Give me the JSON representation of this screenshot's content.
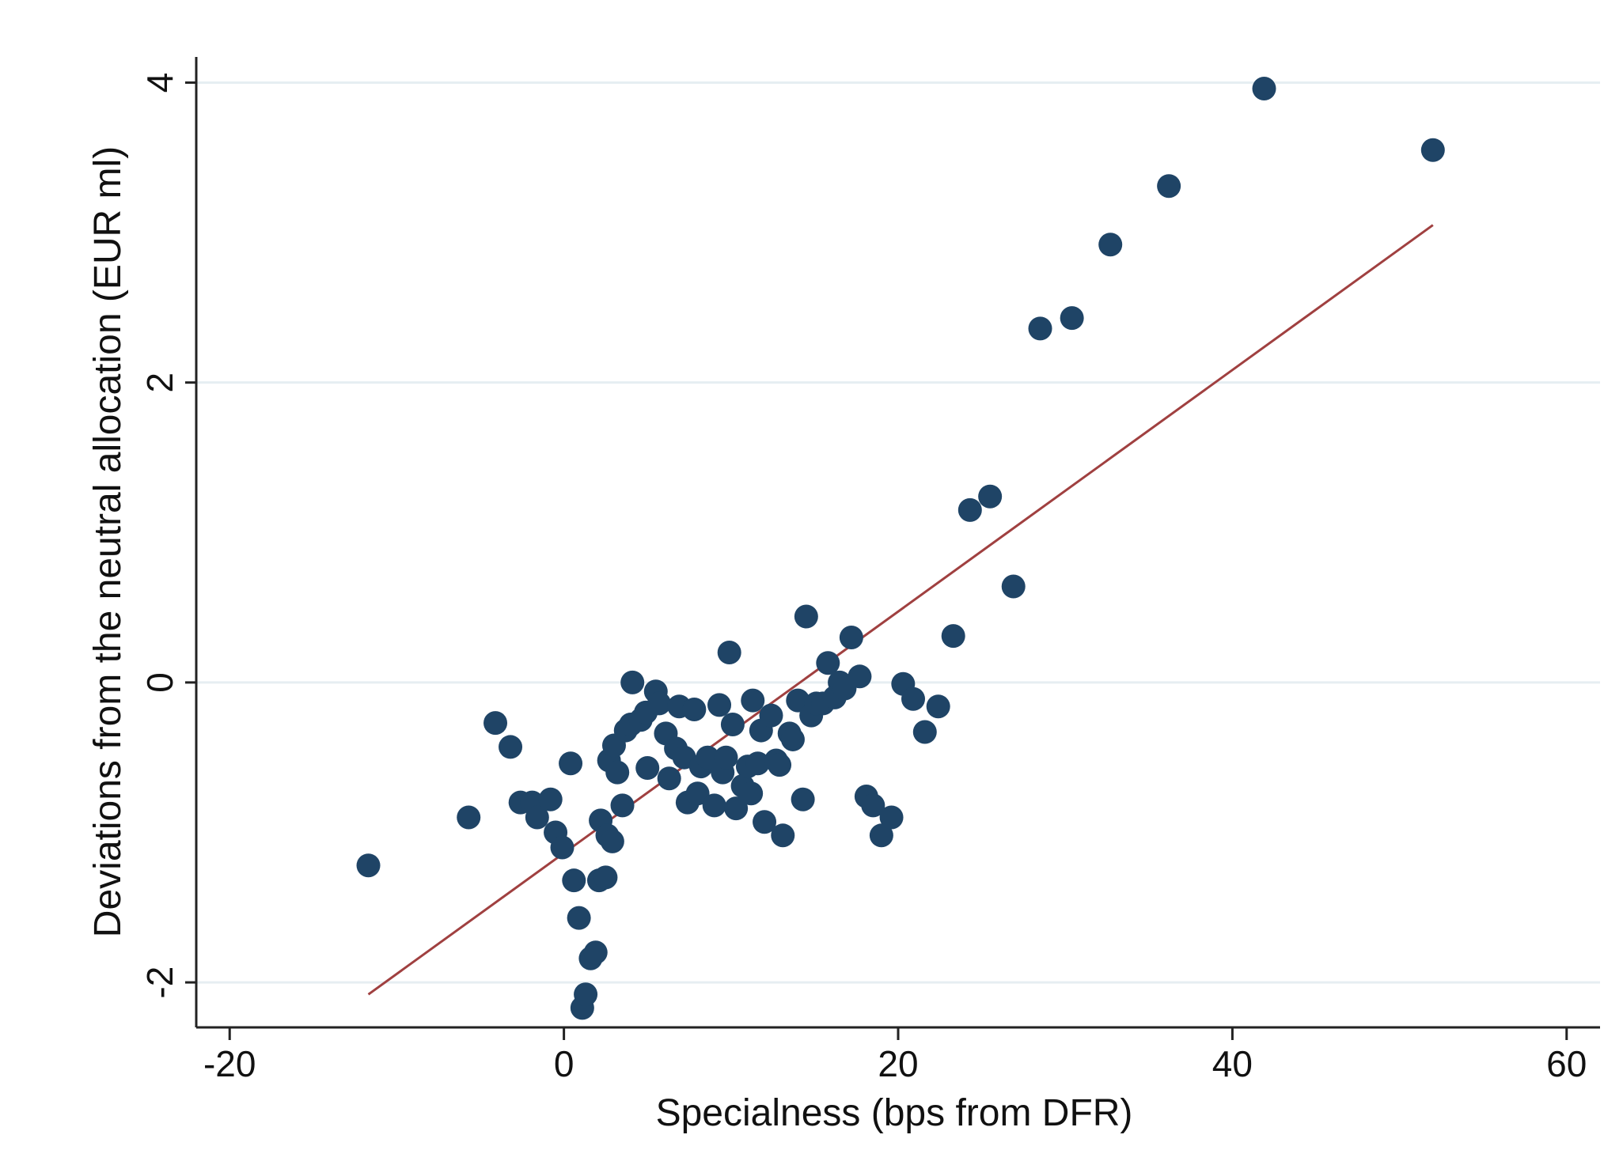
{
  "chart_data": {
    "type": "scatter",
    "xlabel": "Specialness (bps from DFR)",
    "ylabel": "Deviations from the neutral allocation (EUR ml)",
    "xlim": [
      -22,
      62
    ],
    "ylim": [
      -2.3,
      4.15
    ],
    "xticks": [
      "-20",
      "0",
      "20",
      "40",
      "60"
    ],
    "yticks": [
      "-2",
      "0",
      "2",
      "4"
    ],
    "grid": "horizontal",
    "legend": "none",
    "colors": {
      "points": "#1f4466",
      "fit_line": "#a04040",
      "grid": "#e6eef2",
      "axis": "#222222"
    },
    "series": [
      {
        "points": [
          [
            -11.7,
            -1.22
          ],
          [
            -5.7,
            -0.9
          ],
          [
            -4.1,
            -0.27
          ],
          [
            -3.2,
            -0.43
          ],
          [
            -2.6,
            -0.8
          ],
          [
            -1.9,
            -0.8
          ],
          [
            -1.6,
            -0.9
          ],
          [
            -0.8,
            -0.78
          ],
          [
            -0.5,
            -1.0
          ],
          [
            -0.1,
            -1.1
          ],
          [
            0.4,
            -0.54
          ],
          [
            0.6,
            -1.32
          ],
          [
            0.9,
            -1.57
          ],
          [
            1.1,
            -2.17
          ],
          [
            1.3,
            -2.08
          ],
          [
            1.6,
            -1.84
          ],
          [
            1.9,
            -1.8
          ],
          [
            2.1,
            -1.32
          ],
          [
            2.2,
            -0.92
          ],
          [
            2.5,
            -1.3
          ],
          [
            2.6,
            -1.02
          ],
          [
            2.7,
            -0.52
          ],
          [
            2.9,
            -1.06
          ],
          [
            3.0,
            -0.42
          ],
          [
            3.2,
            -0.6
          ],
          [
            3.5,
            -0.82
          ],
          [
            3.7,
            -0.32
          ],
          [
            4.0,
            -0.28
          ],
          [
            4.1,
            0.0
          ],
          [
            4.6,
            -0.25
          ],
          [
            4.9,
            -0.2
          ],
          [
            5.0,
            -0.57
          ],
          [
            5.5,
            -0.06
          ],
          [
            5.7,
            -0.14
          ],
          [
            6.1,
            -0.34
          ],
          [
            6.3,
            -0.64
          ],
          [
            6.7,
            -0.44
          ],
          [
            6.9,
            -0.16
          ],
          [
            7.2,
            -0.5
          ],
          [
            7.4,
            -0.8
          ],
          [
            7.8,
            -0.18
          ],
          [
            8.0,
            -0.74
          ],
          [
            8.2,
            -0.56
          ],
          [
            8.6,
            -0.5
          ],
          [
            9.0,
            -0.82
          ],
          [
            9.3,
            -0.15
          ],
          [
            9.5,
            -0.6
          ],
          [
            9.7,
            -0.5
          ],
          [
            9.9,
            0.2
          ],
          [
            10.1,
            -0.28
          ],
          [
            10.3,
            -0.84
          ],
          [
            10.7,
            -0.69
          ],
          [
            11.0,
            -0.56
          ],
          [
            11.2,
            -0.74
          ],
          [
            11.3,
            -0.12
          ],
          [
            11.6,
            -0.54
          ],
          [
            11.8,
            -0.32
          ],
          [
            12.0,
            -0.93
          ],
          [
            12.4,
            -0.22
          ],
          [
            12.7,
            -0.52
          ],
          [
            12.9,
            -0.55
          ],
          [
            13.1,
            -1.02
          ],
          [
            13.5,
            -0.34
          ],
          [
            13.7,
            -0.38
          ],
          [
            14.0,
            -0.12
          ],
          [
            14.3,
            -0.78
          ],
          [
            14.5,
            0.44
          ],
          [
            14.8,
            -0.22
          ],
          [
            15.1,
            -0.14
          ],
          [
            15.5,
            -0.14
          ],
          [
            15.8,
            0.13
          ],
          [
            16.2,
            -0.1
          ],
          [
            16.5,
            0.0
          ],
          [
            16.8,
            -0.04
          ],
          [
            17.2,
            0.3
          ],
          [
            17.7,
            0.04
          ],
          [
            18.1,
            -0.76
          ],
          [
            18.5,
            -0.82
          ],
          [
            19.0,
            -1.02
          ],
          [
            19.6,
            -0.9
          ],
          [
            20.3,
            -0.01
          ],
          [
            20.9,
            -0.11
          ],
          [
            21.6,
            -0.33
          ],
          [
            22.4,
            -0.16
          ],
          [
            23.3,
            0.31
          ],
          [
            24.3,
            1.15
          ],
          [
            25.5,
            1.24
          ],
          [
            26.9,
            0.64
          ],
          [
            28.5,
            2.36
          ],
          [
            30.4,
            2.43
          ],
          [
            32.7,
            2.92
          ],
          [
            36.2,
            3.31
          ],
          [
            41.9,
            3.96
          ],
          [
            52.0,
            3.55
          ]
        ]
      }
    ],
    "fit_line": {
      "x": [
        -11.7,
        52.0
      ],
      "y": [
        -2.08,
        3.05
      ]
    }
  }
}
